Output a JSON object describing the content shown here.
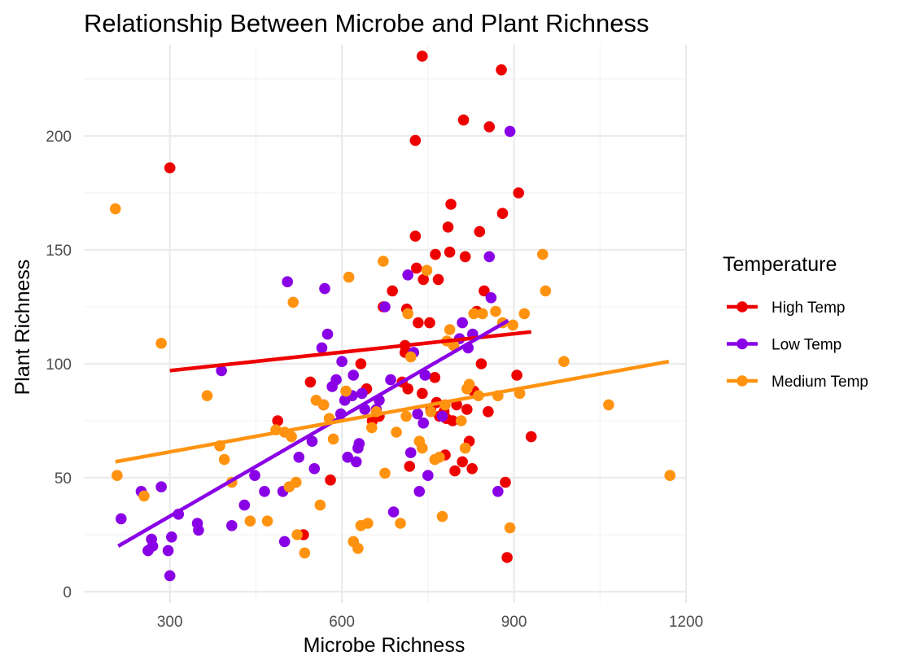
{
  "chart_data": {
    "type": "scatter",
    "title": "Relationship Between Microbe and Plant Richness",
    "xlabel": "Microbe Richness",
    "ylabel": "Plant Richness",
    "xlim": [
      150,
      1200
    ],
    "ylim": [
      -5,
      240
    ],
    "x_ticks": [
      300,
      600,
      900,
      1200
    ],
    "y_ticks": [
      0,
      50,
      100,
      150,
      200
    ],
    "grid": true,
    "legend": {
      "title": "Temperature",
      "position": "right"
    },
    "series": [
      {
        "name": "High Temp",
        "color": "#ee0000",
        "trend": {
          "x": [
            300,
            930
          ],
          "y": [
            97,
            114
          ]
        },
        "points": [
          [
            300,
            186
          ],
          [
            488,
            75
          ],
          [
            545,
            92
          ],
          [
            533,
            25
          ],
          [
            580,
            49
          ],
          [
            633,
            100
          ],
          [
            643,
            89
          ],
          [
            653,
            75
          ],
          [
            665,
            77
          ],
          [
            672,
            125
          ],
          [
            688,
            132
          ],
          [
            705,
            92
          ],
          [
            710,
            108
          ],
          [
            710,
            105
          ],
          [
            713,
            124
          ],
          [
            715,
            89
          ],
          [
            718,
            55
          ],
          [
            728,
            198
          ],
          [
            728,
            156
          ],
          [
            730,
            142
          ],
          [
            733,
            118
          ],
          [
            740,
            235
          ],
          [
            740,
            87
          ],
          [
            742,
            137
          ],
          [
            753,
            118
          ],
          [
            755,
            80
          ],
          [
            762,
            94
          ],
          [
            763,
            148
          ],
          [
            765,
            83
          ],
          [
            768,
            137
          ],
          [
            770,
            77
          ],
          [
            778,
            79
          ],
          [
            780,
            60
          ],
          [
            782,
            76
          ],
          [
            785,
            160
          ],
          [
            788,
            149
          ],
          [
            790,
            170
          ],
          [
            793,
            75
          ],
          [
            797,
            53
          ],
          [
            800,
            82
          ],
          [
            810,
            57
          ],
          [
            812,
            207
          ],
          [
            815,
            147
          ],
          [
            818,
            80
          ],
          [
            822,
            66
          ],
          [
            827,
            54
          ],
          [
            830,
            88
          ],
          [
            835,
            123
          ],
          [
            840,
            158
          ],
          [
            843,
            100
          ],
          [
            848,
            132
          ],
          [
            855,
            79
          ],
          [
            857,
            204
          ],
          [
            878,
            229
          ],
          [
            880,
            166
          ],
          [
            885,
            48
          ],
          [
            888,
            15
          ],
          [
            905,
            95
          ],
          [
            908,
            175
          ],
          [
            930,
            68
          ]
        ]
      },
      {
        "name": "Low Temp",
        "color": "#8a00e6",
        "trend": {
          "x": [
            210,
            890
          ],
          "y": [
            20,
            119
          ]
        },
        "points": [
          [
            215,
            32
          ],
          [
            250,
            44
          ],
          [
            262,
            18
          ],
          [
            268,
            23
          ],
          [
            270,
            20
          ],
          [
            285,
            46
          ],
          [
            297,
            18
          ],
          [
            303,
            24
          ],
          [
            300,
            7
          ],
          [
            315,
            34
          ],
          [
            348,
            30
          ],
          [
            350,
            27
          ],
          [
            390,
            97
          ],
          [
            408,
            29
          ],
          [
            430,
            38
          ],
          [
            448,
            51
          ],
          [
            465,
            44
          ],
          [
            497,
            44
          ],
          [
            500,
            22
          ],
          [
            505,
            136
          ],
          [
            525,
            59
          ],
          [
            548,
            66
          ],
          [
            552,
            54
          ],
          [
            565,
            107
          ],
          [
            568,
            82
          ],
          [
            570,
            133
          ],
          [
            575,
            113
          ],
          [
            583,
            90
          ],
          [
            590,
            93
          ],
          [
            598,
            78
          ],
          [
            600,
            101
          ],
          [
            605,
            84
          ],
          [
            610,
            59
          ],
          [
            618,
            86
          ],
          [
            620,
            95
          ],
          [
            625,
            57
          ],
          [
            628,
            63
          ],
          [
            630,
            65
          ],
          [
            635,
            87
          ],
          [
            640,
            80
          ],
          [
            660,
            80
          ],
          [
            665,
            84
          ],
          [
            675,
            125
          ],
          [
            685,
            93
          ],
          [
            690,
            35
          ],
          [
            715,
            139
          ],
          [
            720,
            61
          ],
          [
            725,
            105
          ],
          [
            732,
            78
          ],
          [
            735,
            44
          ],
          [
            742,
            74
          ],
          [
            745,
            95
          ],
          [
            750,
            51
          ],
          [
            775,
            77
          ],
          [
            805,
            111
          ],
          [
            810,
            118
          ],
          [
            820,
            107
          ],
          [
            828,
            113
          ],
          [
            857,
            147
          ],
          [
            860,
            129
          ],
          [
            872,
            44
          ],
          [
            893,
            202
          ]
        ]
      },
      {
        "name": "Medium Temp",
        "color": "#ff9310",
        "trend": {
          "x": [
            205,
            1170
          ],
          "y": [
            57,
            101
          ]
        },
        "points": [
          [
            205,
            168
          ],
          [
            208,
            51
          ],
          [
            255,
            42
          ],
          [
            285,
            109
          ],
          [
            365,
            86
          ],
          [
            387,
            64
          ],
          [
            395,
            58
          ],
          [
            408,
            48
          ],
          [
            440,
            31
          ],
          [
            470,
            31
          ],
          [
            485,
            71
          ],
          [
            500,
            70
          ],
          [
            508,
            46
          ],
          [
            512,
            68
          ],
          [
            515,
            127
          ],
          [
            520,
            48
          ],
          [
            522,
            25
          ],
          [
            535,
            17
          ],
          [
            555,
            84
          ],
          [
            562,
            38
          ],
          [
            568,
            82
          ],
          [
            578,
            76
          ],
          [
            585,
            67
          ],
          [
            607,
            88
          ],
          [
            612,
            138
          ],
          [
            620,
            22
          ],
          [
            628,
            19
          ],
          [
            633,
            29
          ],
          [
            645,
            30
          ],
          [
            652,
            72
          ],
          [
            660,
            79
          ],
          [
            672,
            145
          ],
          [
            675,
            52
          ],
          [
            695,
            70
          ],
          [
            702,
            30
          ],
          [
            712,
            77
          ],
          [
            715,
            122
          ],
          [
            720,
            103
          ],
          [
            735,
            66
          ],
          [
            740,
            63
          ],
          [
            748,
            141
          ],
          [
            755,
            79
          ],
          [
            762,
            58
          ],
          [
            770,
            59
          ],
          [
            775,
            33
          ],
          [
            780,
            82
          ],
          [
            783,
            110
          ],
          [
            788,
            115
          ],
          [
            795,
            108
          ],
          [
            808,
            75
          ],
          [
            815,
            63
          ],
          [
            818,
            89
          ],
          [
            822,
            91
          ],
          [
            830,
            122
          ],
          [
            838,
            86
          ],
          [
            845,
            122
          ],
          [
            868,
            123
          ],
          [
            872,
            86
          ],
          [
            880,
            118
          ],
          [
            893,
            28
          ],
          [
            898,
            117
          ],
          [
            910,
            87
          ],
          [
            918,
            122
          ],
          [
            950,
            148
          ],
          [
            955,
            132
          ],
          [
            987,
            101
          ],
          [
            1065,
            82
          ],
          [
            1172,
            51
          ]
        ]
      }
    ]
  }
}
